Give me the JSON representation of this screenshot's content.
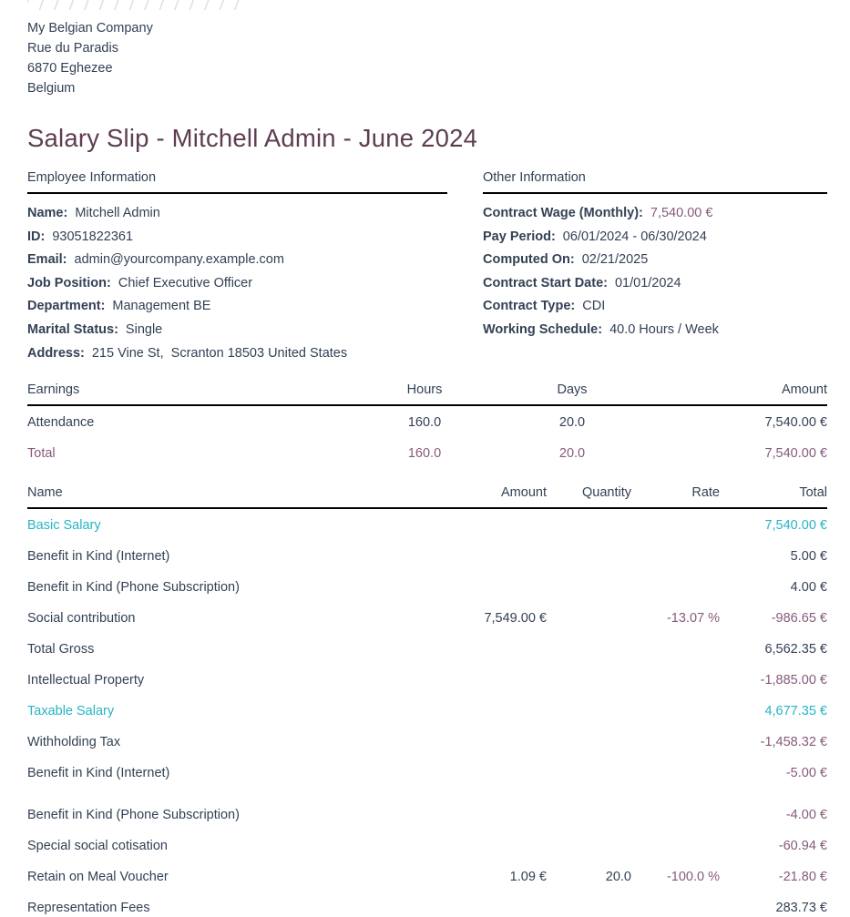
{
  "colors": {
    "text": "#334155",
    "title": "#5e3d52",
    "accent_purple": "#875A7B",
    "accent_teal": "#26b4c6",
    "rule": "#000000"
  },
  "company": {
    "name": "My Belgian Company",
    "street": "Rue du Paradis",
    "city": "6870 Eghezee",
    "country": "Belgium"
  },
  "title": "Salary Slip - Mitchell Admin - June 2024",
  "employee_info": {
    "heading": "Employee Information",
    "fields": [
      {
        "label": "Name:",
        "value": "Mitchell Admin"
      },
      {
        "label": "ID:",
        "value": "93051822361"
      },
      {
        "label": "Email:",
        "value": "admin@yourcompany.example.com"
      },
      {
        "label": "Job Position:",
        "value": "Chief Executive Officer"
      },
      {
        "label": "Department:",
        "value": "Management BE"
      },
      {
        "label": "Marital Status:",
        "value": "Single"
      },
      {
        "label": "Address:",
        "value": "215 Vine St,  Scranton 18503 United States"
      }
    ]
  },
  "other_info": {
    "heading": "Other Information",
    "fields": [
      {
        "label": "Contract Wage (Monthly):",
        "value": "7,540.00 €",
        "value_style": "purple"
      },
      {
        "label": "Pay Period:",
        "value": "06/01/2024 - 06/30/2024"
      },
      {
        "label": "Computed On:",
        "value": "02/21/2025"
      },
      {
        "label": "Contract Start Date:",
        "value": "01/01/2024"
      },
      {
        "label": "Contract Type:",
        "value": "CDI"
      },
      {
        "label": "Working Schedule:",
        "value": "40.0 Hours / Week"
      }
    ]
  },
  "earnings_table": {
    "headers": {
      "name": "Earnings",
      "hours": "Hours",
      "days": "Days",
      "amount": "Amount"
    },
    "rows": [
      {
        "name": "Attendance",
        "hours": "160.0",
        "days": "20.0",
        "amount": "7,540.00 €",
        "style": "normal"
      },
      {
        "name": "Total",
        "hours": "160.0",
        "days": "20.0",
        "amount": "7,540.00 €",
        "style": "total"
      }
    ]
  },
  "lines_table": {
    "headers": {
      "name": "Name",
      "amount": "Amount",
      "quantity": "Quantity",
      "rate": "Rate",
      "total": "Total"
    },
    "rows": [
      {
        "name": "Basic Salary",
        "amount": "",
        "quantity": "",
        "rate": "",
        "total": "7,540.00 €",
        "name_style": "teal",
        "rate_style": "normal",
        "total_style": "teal",
        "gap_before": false
      },
      {
        "name": "Benefit in Kind (Internet)",
        "amount": "",
        "quantity": "",
        "rate": "",
        "total": "5.00 €",
        "name_style": "normal",
        "rate_style": "normal",
        "total_style": "normal",
        "gap_before": false
      },
      {
        "name": "Benefit in Kind (Phone Subscription)",
        "amount": "",
        "quantity": "",
        "rate": "",
        "total": "4.00 €",
        "name_style": "normal",
        "rate_style": "normal",
        "total_style": "normal",
        "gap_before": false
      },
      {
        "name": "Social contribution",
        "amount": "7,549.00 €",
        "quantity": "",
        "rate": "-13.07 %",
        "total": "-986.65 €",
        "name_style": "normal",
        "rate_style": "purple",
        "total_style": "purple",
        "gap_before": false
      },
      {
        "name": "Total Gross",
        "amount": "",
        "quantity": "",
        "rate": "",
        "total": "6,562.35 €",
        "name_style": "normal",
        "rate_style": "normal",
        "total_style": "normal",
        "gap_before": false
      },
      {
        "name": "Intellectual Property",
        "amount": "",
        "quantity": "",
        "rate": "",
        "total": "-1,885.00 €",
        "name_style": "normal",
        "rate_style": "normal",
        "total_style": "purple",
        "gap_before": false
      },
      {
        "name": "Taxable Salary",
        "amount": "",
        "quantity": "",
        "rate": "",
        "total": "4,677.35 €",
        "name_style": "teal",
        "rate_style": "normal",
        "total_style": "teal",
        "gap_before": false
      },
      {
        "name": "Withholding Tax",
        "amount": "",
        "quantity": "",
        "rate": "",
        "total": "-1,458.32 €",
        "name_style": "normal",
        "rate_style": "normal",
        "total_style": "purple",
        "gap_before": false
      },
      {
        "name": "Benefit in Kind (Internet)",
        "amount": "",
        "quantity": "",
        "rate": "",
        "total": "-5.00 €",
        "name_style": "normal",
        "rate_style": "normal",
        "total_style": "purple",
        "gap_before": false
      },
      {
        "name": "Benefit in Kind (Phone Subscription)",
        "amount": "",
        "quantity": "",
        "rate": "",
        "total": "-4.00 €",
        "name_style": "normal",
        "rate_style": "normal",
        "total_style": "purple",
        "gap_before": true
      },
      {
        "name": "Special social cotisation",
        "amount": "",
        "quantity": "",
        "rate": "",
        "total": "-60.94 €",
        "name_style": "normal",
        "rate_style": "normal",
        "total_style": "purple",
        "gap_before": false
      },
      {
        "name": "Retain on Meal Voucher",
        "amount": "1.09 €",
        "quantity": "20.0",
        "rate": "-100.0 %",
        "total": "-21.80 €",
        "name_style": "normal",
        "rate_style": "purple",
        "total_style": "purple",
        "gap_before": false
      },
      {
        "name": "Representation Fees",
        "amount": "",
        "quantity": "",
        "rate": "",
        "total": "283.73 €",
        "name_style": "normal",
        "rate_style": "normal",
        "total_style": "normal",
        "gap_before": false
      }
    ]
  }
}
